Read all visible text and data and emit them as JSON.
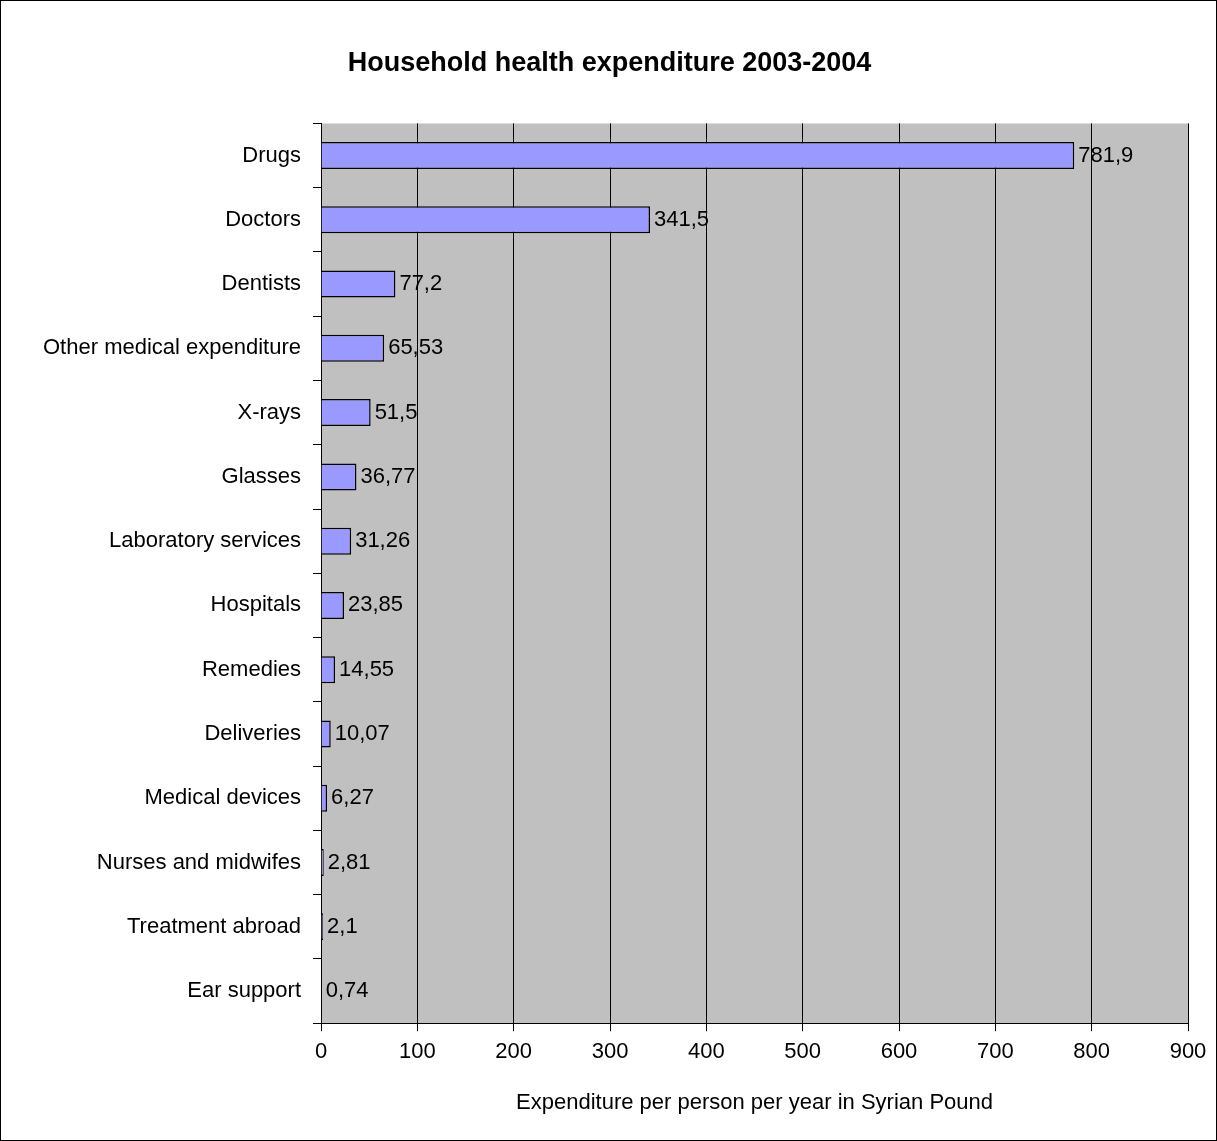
{
  "chart_data": {
    "type": "bar",
    "orientation": "horizontal",
    "title": "Household health expenditure 2003-2004",
    "xlabel": "Expenditure per person per year in Syrian Pound",
    "categories": [
      "Drugs",
      "Doctors",
      "Dentists",
      "Other medical expenditure",
      "X-rays",
      "Glasses",
      "Laboratory services",
      "Hospitals",
      "Remedies",
      "Deliveries",
      "Medical devices",
      "Nurses and midwifes",
      "Treatment abroad",
      "Ear support"
    ],
    "values": [
      781.9,
      341.5,
      77.2,
      65.53,
      51.5,
      36.77,
      31.26,
      23.85,
      14.55,
      10.07,
      6.27,
      2.81,
      2.1,
      0.74
    ],
    "value_labels": [
      "781,9",
      "341,5",
      "77,2",
      "65,53",
      "51,5",
      "36,77",
      "31,26",
      "23,85",
      "14,55",
      "10,07",
      "6,27",
      "2,81",
      "2,1",
      "0,74"
    ],
    "color": "#9999ff",
    "xlim": [
      0,
      900
    ],
    "xticks": [
      0,
      100,
      200,
      300,
      400,
      500,
      600,
      700,
      800,
      900
    ],
    "grid": "x",
    "legend": false
  }
}
